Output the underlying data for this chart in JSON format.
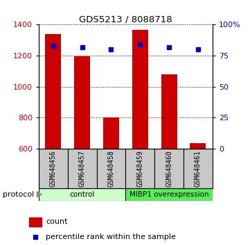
{
  "title": "GDS5213 / 8088718",
  "samples": [
    "GSM648456",
    "GSM648457",
    "GSM648458",
    "GSM648459",
    "GSM648460",
    "GSM648461"
  ],
  "counts": [
    1340,
    1195,
    800,
    1365,
    1080,
    635
  ],
  "percentile_ranks": [
    83,
    82,
    80,
    84,
    82,
    80
  ],
  "ylim_left": [
    600,
    1400
  ],
  "ylim_right": [
    0,
    100
  ],
  "yticks_left": [
    600,
    800,
    1000,
    1200,
    1400
  ],
  "yticks_right": [
    0,
    25,
    50,
    75,
    100
  ],
  "bar_color": "#cc0000",
  "dot_color": "#0000cc",
  "bar_bottom": 600,
  "protocol_groups": [
    {
      "label": "control",
      "start": 0,
      "end": 3,
      "color": "#ccffcc"
    },
    {
      "label": "MIBP1 overexpression",
      "start": 3,
      "end": 6,
      "color": "#55ee55"
    }
  ],
  "protocol_label": "protocol",
  "legend_count_label": "count",
  "legend_pct_label": "percentile rank within the sample",
  "tick_label_color_left": "#cc0000",
  "tick_label_color_right": "#0000cc",
  "label_area_bg": "#c8c8c8"
}
